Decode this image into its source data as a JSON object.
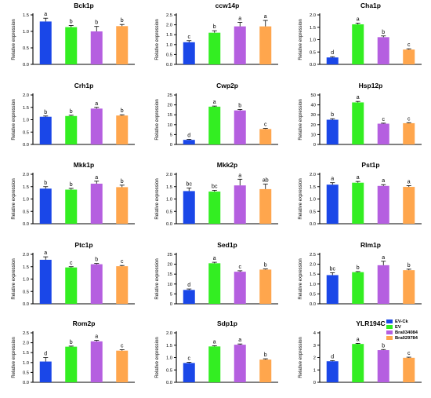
{
  "chart_data": [
    {
      "type": "bar",
      "title": "Bck1p",
      "ylabel": "Relative expression",
      "ylim": [
        0,
        1.5
      ],
      "yticks": [
        "0.0",
        "0.5",
        "1.0",
        "1.5"
      ],
      "values": [
        1.3,
        1.13,
        1.0,
        1.16
      ],
      "errors": [
        0.1,
        0.05,
        0.15,
        0.05
      ],
      "letters": [
        "a",
        "b",
        "b",
        "b"
      ]
    },
    {
      "type": "bar",
      "title": "ccw14p",
      "ylabel": "Relative expression",
      "ylim": [
        0,
        2.5
      ],
      "yticks": [
        "0.0",
        "0.5",
        "1.0",
        "1.5",
        "2.0",
        "2.5"
      ],
      "values": [
        1.12,
        1.6,
        1.92,
        1.92
      ],
      "errors": [
        0.08,
        0.1,
        0.2,
        0.3
      ],
      "letters": [
        "c",
        "b",
        "a",
        "a"
      ]
    },
    {
      "type": "bar",
      "title": "Cha1p",
      "ylabel": "Relative expression",
      "ylim": [
        0,
        2.0
      ],
      "yticks": [
        "0.0",
        "0.5",
        "1.0",
        "1.5",
        "2.0"
      ],
      "values": [
        0.28,
        1.62,
        1.1,
        0.6
      ],
      "errors": [
        0.03,
        0.05,
        0.05,
        0.03
      ],
      "letters": [
        "d",
        "a",
        "b",
        "c"
      ]
    },
    {
      "type": "bar",
      "title": "Crh1p",
      "ylabel": "Relative expression",
      "ylim": [
        0,
        2.0
      ],
      "yticks": [
        "0.0",
        "0.5",
        "1.0",
        "1.5",
        "2.0"
      ],
      "values": [
        1.12,
        1.15,
        1.45,
        1.17
      ],
      "errors": [
        0.03,
        0.03,
        0.05,
        0.03
      ],
      "letters": [
        "b",
        "b",
        "a",
        "b"
      ]
    },
    {
      "type": "bar",
      "title": "Cwp2p",
      "ylabel": "Relative expression",
      "ylim": [
        0,
        25
      ],
      "yticks": [
        "0",
        "5",
        "10",
        "15",
        "20",
        "25"
      ],
      "values": [
        2.3,
        19.1,
        17.2,
        7.8
      ],
      "errors": [
        0.3,
        0.3,
        0.5,
        0.3
      ],
      "letters": [
        "d",
        "a",
        "b",
        "c"
      ]
    },
    {
      "type": "bar",
      "title": "Hsp12p",
      "ylabel": "Relative expression",
      "ylim": [
        0,
        50
      ],
      "yticks": [
        "0",
        "10",
        "20",
        "30",
        "40",
        "50"
      ],
      "values": [
        25,
        42.5,
        21,
        21.5
      ],
      "errors": [
        1.0,
        1.0,
        0.5,
        0.5
      ],
      "letters": [
        "b",
        "a",
        "c",
        "c"
      ]
    },
    {
      "type": "bar",
      "title": "Mkk1p",
      "ylabel": "Relative expression",
      "ylim": [
        0,
        2.0
      ],
      "yticks": [
        "0.0",
        "0.5",
        "1.0",
        "1.5",
        "2.0"
      ],
      "values": [
        1.42,
        1.38,
        1.62,
        1.48
      ],
      "errors": [
        0.08,
        0.05,
        0.1,
        0.08
      ],
      "letters": [
        "b",
        "b",
        "a",
        "b"
      ]
    },
    {
      "type": "bar",
      "title": "Mkk2p",
      "ylabel": "Relative expression",
      "ylim": [
        0,
        2.0
      ],
      "yticks": [
        "0.0",
        "0.5",
        "1.0",
        "1.5",
        "2.0"
      ],
      "values": [
        1.32,
        1.3,
        1.55,
        1.4
      ],
      "errors": [
        0.12,
        0.05,
        0.25,
        0.2
      ],
      "letters": [
        "bc",
        "bc",
        "a",
        "ab"
      ]
    },
    {
      "type": "bar",
      "title": "Pst1p",
      "ylabel": "Relative expression",
      "ylim": [
        0,
        2.0
      ],
      "yticks": [
        "0.0",
        "0.5",
        "1.0",
        "1.5",
        "2.0"
      ],
      "values": [
        1.58,
        1.66,
        1.53,
        1.49
      ],
      "errors": [
        0.08,
        0.05,
        0.05,
        0.05
      ],
      "letters": [
        "a",
        "a",
        "a",
        "a"
      ]
    },
    {
      "type": "bar",
      "title": "Ptc1p",
      "ylabel": "Relative expression",
      "ylim": [
        0,
        2.0
      ],
      "yticks": [
        "0.0",
        "0.5",
        "1.0",
        "1.5",
        "2.0"
      ],
      "values": [
        1.78,
        1.47,
        1.6,
        1.52
      ],
      "errors": [
        0.12,
        0.03,
        0.03,
        0.03
      ],
      "letters": [
        "a",
        "c",
        "b",
        "c"
      ]
    },
    {
      "type": "bar",
      "title": "Sed1p",
      "ylabel": "Relative expression",
      "ylim": [
        0,
        25
      ],
      "yticks": [
        "0",
        "5",
        "10",
        "15",
        "20",
        "25"
      ],
      "values": [
        7,
        20.5,
        16.2,
        17.3
      ],
      "errors": [
        0.5,
        0.5,
        0.5,
        0.3
      ],
      "letters": [
        "d",
        "a",
        "c",
        "b"
      ]
    },
    {
      "type": "bar",
      "title": "Rlm1p",
      "ylabel": "Relative expression",
      "ylim": [
        0,
        2.5
      ],
      "yticks": [
        "0.0",
        "0.5",
        "1.0",
        "1.5",
        "2.0",
        "2.5"
      ],
      "values": [
        1.45,
        1.6,
        1.95,
        1.7
      ],
      "errors": [
        0.12,
        0.03,
        0.2,
        0.05
      ],
      "letters": [
        "bc",
        "b",
        "a",
        "b"
      ]
    },
    {
      "type": "bar",
      "title": "Rom2p",
      "ylabel": "Relative expression",
      "ylim": [
        0,
        2.5
      ],
      "yticks": [
        "0.0",
        "0.5",
        "1.0",
        "1.5",
        "2.0",
        "2.5"
      ],
      "values": [
        1.05,
        1.8,
        2.07,
        1.6
      ],
      "errors": [
        0.2,
        0.03,
        0.05,
        0.05
      ],
      "letters": [
        "d",
        "b",
        "a",
        "c"
      ]
    },
    {
      "type": "bar",
      "title": "Sdp1p",
      "ylabel": "Relative expression",
      "ylim": [
        0,
        2.0
      ],
      "yticks": [
        "0.0",
        "0.5",
        "1.0",
        "1.5",
        "2.0"
      ],
      "values": [
        0.78,
        1.45,
        1.52,
        0.92
      ],
      "errors": [
        0.03,
        0.03,
        0.03,
        0.03
      ],
      "letters": [
        "c",
        "a",
        "a",
        "b"
      ]
    },
    {
      "type": "bar",
      "title": "YLR194C",
      "ylabel": "Relative expression",
      "ylim": [
        0,
        4
      ],
      "yticks": [
        "0",
        "1",
        "2",
        "3",
        "4"
      ],
      "values": [
        1.7,
        3.1,
        2.6,
        1.98
      ],
      "errors": [
        0.05,
        0.05,
        0.05,
        0.05
      ],
      "letters": [
        "d",
        "a",
        "b",
        "c"
      ]
    }
  ],
  "legend": {
    "entries": [
      {
        "label": "EV-Ck",
        "color": "#1a47e8"
      },
      {
        "label": "EV",
        "color": "#33ee22"
      },
      {
        "label": "Bra034084",
        "color": "#b55fe0"
      },
      {
        "label": "Bra029784",
        "color": "#ffa64d"
      }
    ]
  },
  "colors": [
    "#1a47e8",
    "#33ee22",
    "#b55fe0",
    "#ffa64d"
  ]
}
